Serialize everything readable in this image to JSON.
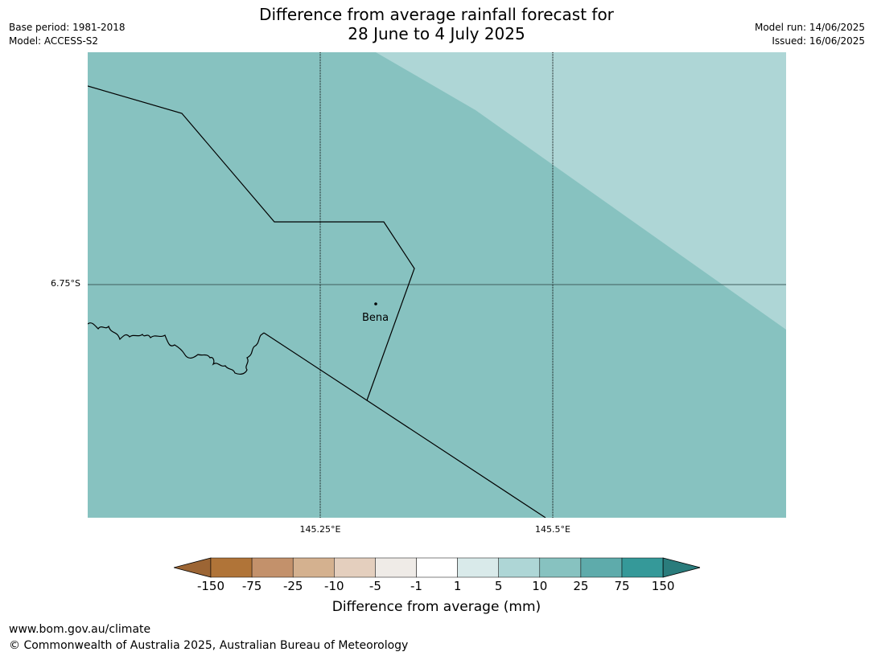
{
  "header": {
    "title_line1": "Difference from average rainfall forecast for",
    "title_line2": "28 June to 4 July 2025",
    "base_period": "Base period: 1981-2018",
    "model": "Model: ACCESS-S2",
    "model_run": "Model run: 14/06/2025",
    "issued": "Issued: 16/06/2025"
  },
  "map": {
    "lat_label": "6.75°S",
    "lon_labels": [
      "145.25°E",
      "145.5°E"
    ],
    "place": "Bena",
    "fill_colors": {
      "main": "#87c2c0",
      "lighter": "#aed6d6"
    }
  },
  "colorbar": {
    "label": "Difference from average (mm)",
    "ticks": [
      "-150",
      "-75",
      "-25",
      "-10",
      "-5",
      "-1",
      "1",
      "5",
      "10",
      "25",
      "75",
      "150"
    ],
    "colors": [
      "#9c6534",
      "#b07438",
      "#c3916b",
      "#d4b18f",
      "#e4cfbe",
      "#efebe7",
      "#ffffff",
      "#d9eaea",
      "#aed6d6",
      "#87c2c0",
      "#5eabab",
      "#359999",
      "#2a7c7c"
    ]
  },
  "footer": {
    "url": "www.bom.gov.au/climate",
    "copyright": "© Commonwealth of Australia 2025, Australian Bureau of Meteorology"
  }
}
